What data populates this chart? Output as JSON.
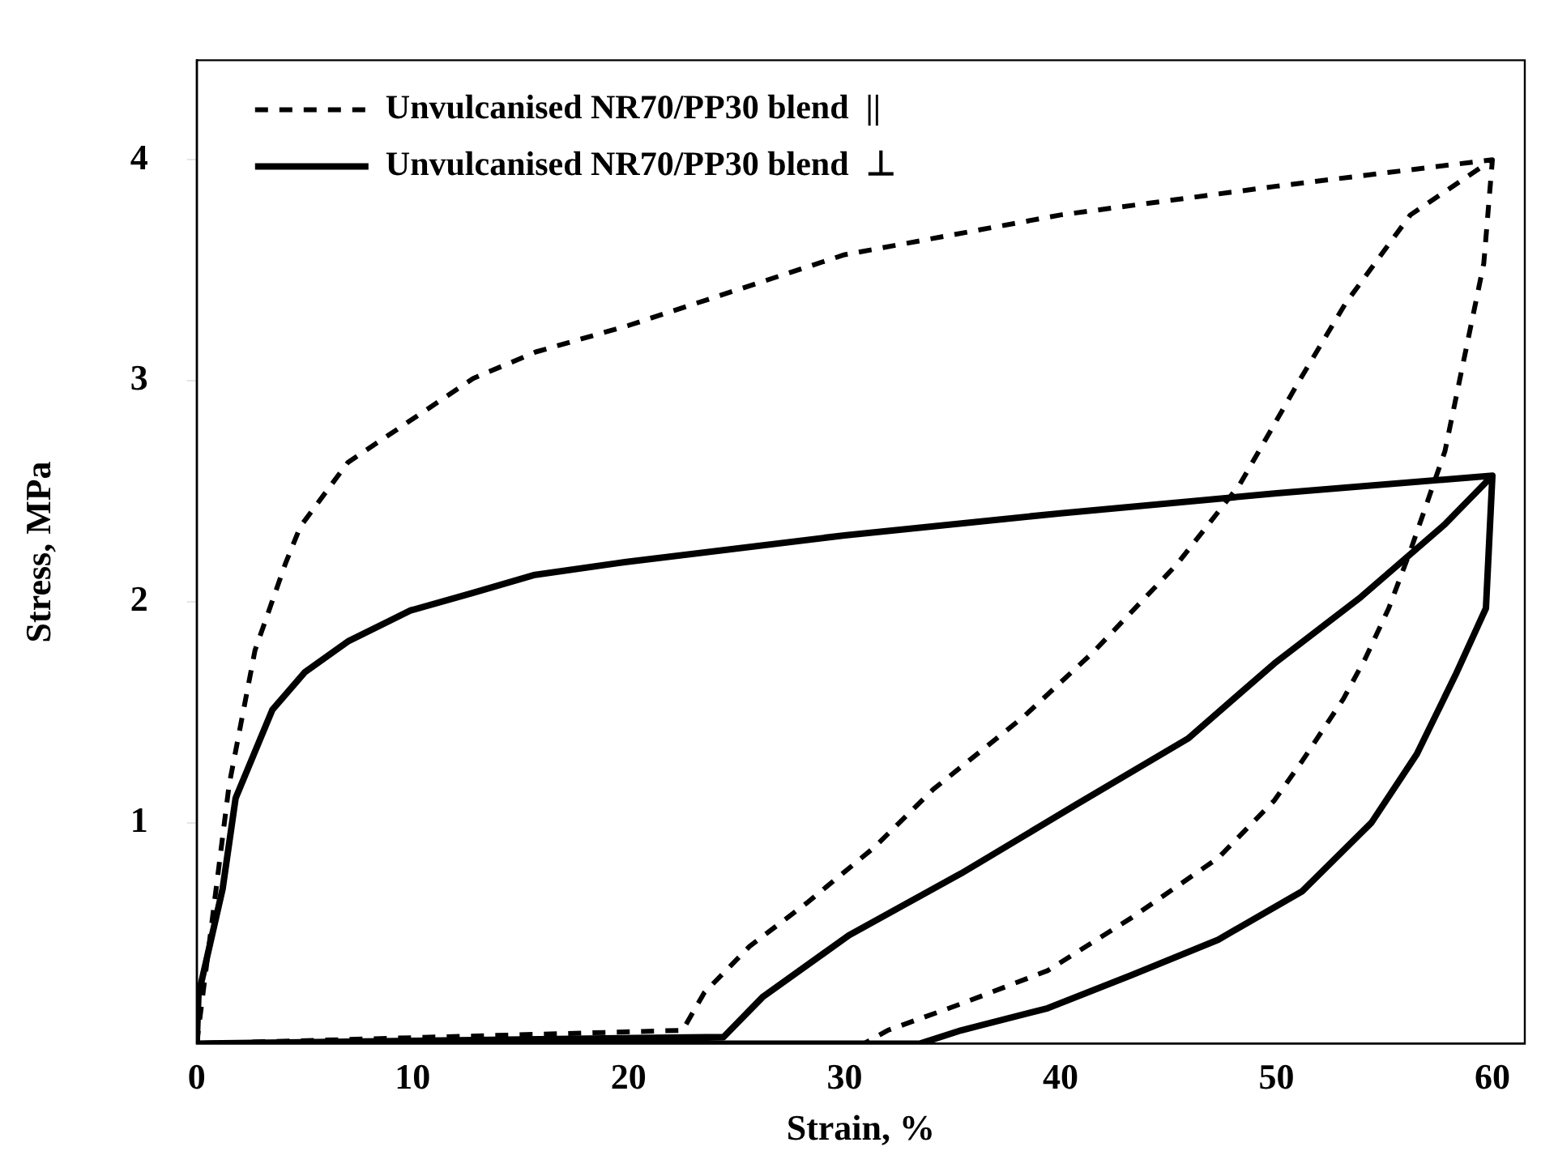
{
  "chart_data": {
    "type": "line",
    "xlabel": "Strain, %",
    "ylabel": "Stress, MPa",
    "xlim": [
      0,
      61.5
    ],
    "xticks": [
      0,
      10,
      20,
      30,
      40,
      50,
      60
    ],
    "ylim": [
      0,
      4.45
    ],
    "yticks": [
      1,
      2,
      3,
      4
    ],
    "grid": false,
    "legend": "top left",
    "marker": "none",
    "series": [
      {
        "name": "Unvulcanised NR70/PP30 blend  ||",
        "color": "#000000",
        "line_style": "dashed",
        "x": [
          0,
          1.5,
          2.7,
          4.1,
          4.8,
          7.0,
          9.9,
          12.8,
          15.7,
          20,
          30,
          40,
          50,
          60,
          56.2,
          53.2,
          51,
          48.3,
          45.4,
          41.5,
          38.3,
          34.1,
          31.4,
          28.3,
          25.6,
          23.5,
          22.5,
          0,
          30.9,
          32,
          35.4,
          39.4,
          43.3,
          47.3,
          49.9,
          51.2,
          53.1,
          54.1,
          55.2,
          56.2,
          57.8,
          59.6,
          60
        ],
        "values": [
          0,
          1.17,
          1.78,
          2.17,
          2.34,
          2.63,
          2.82,
          3.01,
          3.13,
          3.25,
          3.57,
          3.75,
          3.88,
          4.0,
          3.75,
          3.35,
          2.99,
          2.53,
          2.17,
          1.77,
          1.48,
          1.15,
          0.89,
          0.64,
          0.44,
          0.23,
          0.06,
          0,
          0,
          0.06,
          0.18,
          0.33,
          0.57,
          0.84,
          1.1,
          1.28,
          1.56,
          1.74,
          1.97,
          2.23,
          2.68,
          3.53,
          4.0
        ]
      },
      {
        "name": "Unvulcanised NR70/PP30 blend  ⊥",
        "color": "#000000",
        "line_style": "solid",
        "x": [
          0,
          0.08,
          1.2,
          1.8,
          3.5,
          5.0,
          7.0,
          9.9,
          12.8,
          15.6,
          19.9,
          30,
          40,
          50,
          60,
          57.8,
          53.9,
          49.9,
          45.9,
          40.7,
          35.4,
          30.2,
          26.2,
          24.4,
          0,
          33.5,
          35.4,
          39.4,
          43.3,
          47.3,
          51.2,
          54.4,
          56.5,
          58.3,
          59.7,
          60
        ],
        "values": [
          0,
          0.22,
          0.7,
          1.11,
          1.51,
          1.68,
          1.82,
          1.96,
          2.04,
          2.12,
          2.18,
          2.3,
          2.4,
          2.49,
          2.57,
          2.35,
          2.02,
          1.72,
          1.38,
          1.08,
          0.77,
          0.49,
          0.21,
          0.03,
          0,
          0,
          0.06,
          0.16,
          0.31,
          0.47,
          0.69,
          1.0,
          1.31,
          1.67,
          1.97,
          2.57
        ]
      }
    ]
  }
}
